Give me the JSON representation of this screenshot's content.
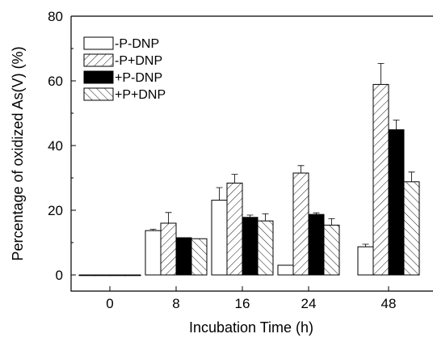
{
  "chart_data": {
    "type": "bar",
    "title": "",
    "xlabel": "Incubation Time (h)",
    "ylabel": "Percentage of oxidized As(V) (%)",
    "ylim": [
      -5,
      80
    ],
    "yticks": [
      "0",
      "20",
      "40",
      "60",
      "80"
    ],
    "categories": [
      "0",
      "8",
      "16",
      "24",
      "48"
    ],
    "grid": false,
    "legend_position": "top-left",
    "series": [
      {
        "name": "-P-DNP",
        "pattern": "white",
        "values": [
          0,
          13.7,
          23.1,
          3.0,
          8.7
        ],
        "errors": [
          0,
          0.4,
          3.9,
          0,
          0.8
        ]
      },
      {
        "name": "-P+DNP",
        "pattern": "diagonal-forward",
        "values": [
          0,
          16.0,
          28.4,
          31.5,
          58.9
        ],
        "errors": [
          0,
          3.3,
          2.7,
          2.3,
          6.5
        ]
      },
      {
        "name": "+P-DNP",
        "pattern": "black",
        "values": [
          0,
          11.5,
          17.8,
          18.7,
          44.9
        ],
        "errors": [
          0,
          0,
          0.7,
          0.5,
          3.0
        ]
      },
      {
        "name": "+P+DNP",
        "pattern": "diagonal-back",
        "values": [
          0,
          11.2,
          16.7,
          15.4,
          28.8
        ],
        "errors": [
          0,
          0,
          2.2,
          2.0,
          3.0
        ]
      }
    ]
  }
}
